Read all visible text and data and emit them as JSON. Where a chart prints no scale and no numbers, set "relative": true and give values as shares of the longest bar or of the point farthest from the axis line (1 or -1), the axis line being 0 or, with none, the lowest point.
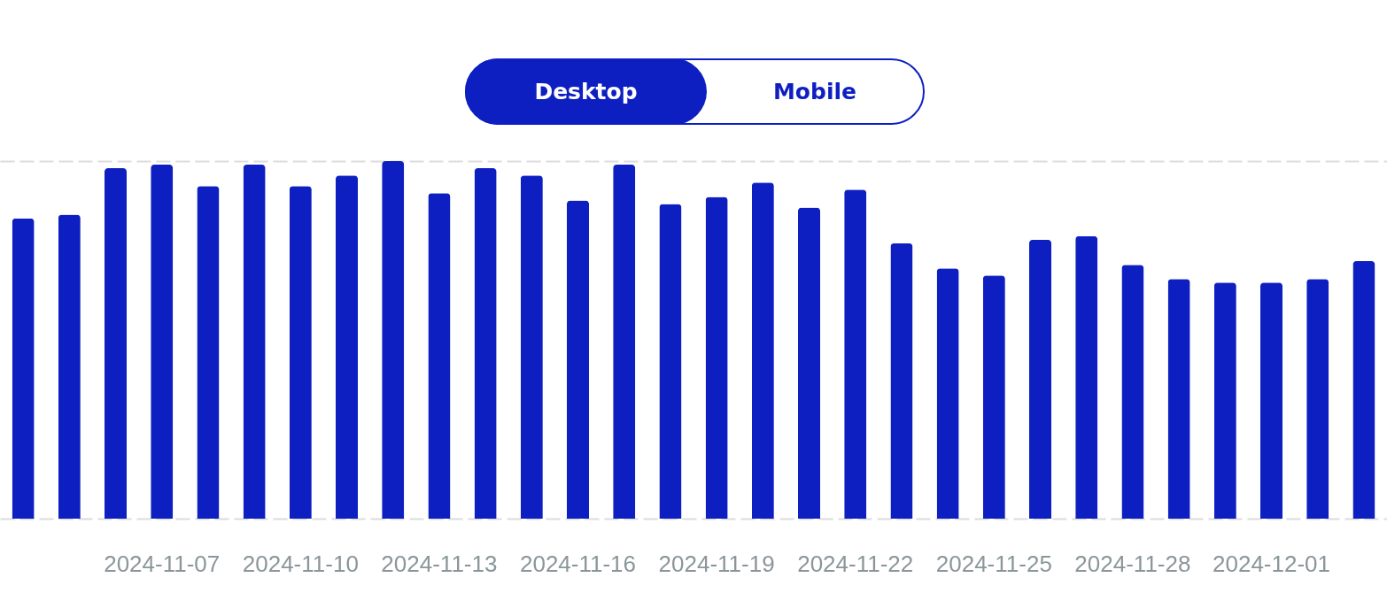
{
  "chart_data": {
    "type": "bar",
    "relative": true,
    "grid": "y",
    "color": "#0e1fc2",
    "categories": [
      null,
      null,
      null,
      "2024-11-07",
      null,
      null,
      "2024-11-10",
      null,
      null,
      "2024-11-13",
      null,
      null,
      "2024-11-16",
      null,
      null,
      "2024-11-19",
      null,
      null,
      "2024-11-22",
      null,
      null,
      "2024-11-25",
      null,
      null,
      "2024-11-28",
      null,
      null,
      "2024-12-01",
      null,
      null
    ],
    "values": [
      0.84,
      0.85,
      0.98,
      0.99,
      0.93,
      0.99,
      0.93,
      0.96,
      1,
      0.91,
      0.98,
      0.96,
      0.89,
      0.99,
      0.88,
      0.9,
      0.94,
      0.87,
      0.92,
      0.77,
      0.7,
      0.68,
      0.78,
      0.79,
      0.71,
      0.67,
      0.66,
      0.66,
      0.67,
      0.72
    ],
    "annotations": [
      "Desktop",
      "Mobile"
    ]
  }
}
